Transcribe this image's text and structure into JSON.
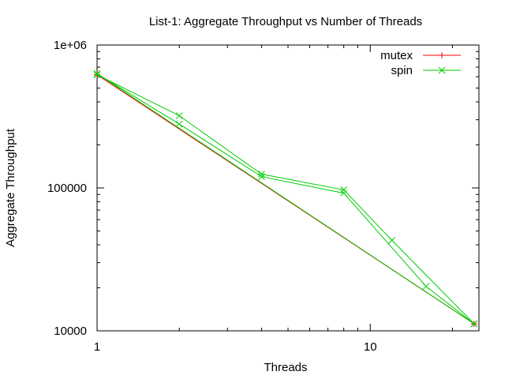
{
  "chart_data": {
    "type": "line",
    "title": "List-1: Aggregate Throughput vs Number of Threads",
    "xlabel": "Threads",
    "ylabel": "Aggregate Throughput",
    "xscale": "log",
    "yscale": "log",
    "xlim": [
      1,
      25
    ],
    "ylim": [
      10000,
      1000000
    ],
    "x_ticks": [
      {
        "value": 1,
        "label": "1"
      },
      {
        "value": 10,
        "label": "10"
      }
    ],
    "y_ticks": [
      {
        "value": 10000,
        "label": "10000"
      },
      {
        "value": 100000,
        "label": "100000"
      },
      {
        "value": 1000000,
        "label": "1e+06"
      }
    ],
    "grid": false,
    "legend_position": "top-right",
    "series": [
      {
        "name": "mutex",
        "color": "#ff0000",
        "marker": "plus",
        "points": [
          [
            1,
            620000
          ],
          [
            24,
            11200
          ]
        ]
      },
      {
        "name": "spin",
        "color": "#00cc00",
        "marker": "cross",
        "points": [
          [
            1,
            620000
          ],
          [
            2,
            320000
          ],
          [
            4,
            125000
          ],
          [
            8,
            97000
          ],
          [
            12,
            43000
          ],
          [
            24,
            11200
          ],
          [
            16,
            20500
          ],
          [
            8,
            92000
          ],
          [
            4,
            120000
          ],
          [
            2,
            280000
          ],
          [
            1,
            630000
          ],
          [
            24,
            11200
          ]
        ]
      }
    ]
  }
}
